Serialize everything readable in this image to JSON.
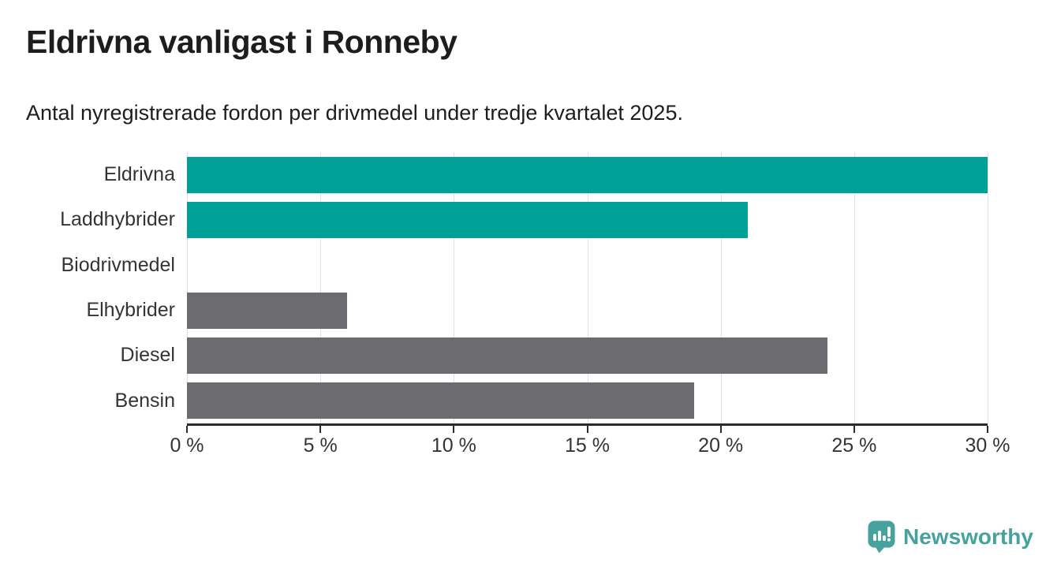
{
  "header": {
    "title": "Eldrivna vanligast i Ronneby",
    "subtitle": "Antal nyregistrerade fordon per drivmedel under tredje kvartalet 2025."
  },
  "chart_data": {
    "type": "bar",
    "orientation": "horizontal",
    "title": "Eldrivna vanligast i Ronneby",
    "subtitle": "Antal nyregistrerade fordon per drivmedel under tredje kvartalet 2025.",
    "categories": [
      "Eldrivna",
      "Laddhybrider",
      "Biodrivmedel",
      "Elhybrider",
      "Diesel",
      "Bensin"
    ],
    "values": [
      30,
      21,
      0,
      6,
      24,
      19
    ],
    "unit": "%",
    "xlim": [
      0,
      30
    ],
    "x_ticks": [
      0,
      5,
      10,
      15,
      20,
      25,
      30
    ],
    "x_tick_labels": [
      "0 %",
      "5 %",
      "10 %",
      "15 %",
      "20 %",
      "25 %",
      "30 %"
    ],
    "bar_colors": [
      "#00a096",
      "#00a096",
      "#6b6b70",
      "#6b6b70",
      "#6b6b70",
      "#6b6b70"
    ],
    "grid": true,
    "legend": false
  },
  "colors": {
    "accent_teal": "#00a096",
    "bar_gray": "#6b6b70",
    "gridline": "#e2e2e2",
    "axis": "#2b2b2b",
    "text_dark": "#1d1d1b",
    "text_label": "#343434",
    "logo_teal": "#46a29d"
  },
  "branding": {
    "logo_text": "Newsworthy",
    "logo_icon": "newsworthy-speech-bubble-barchart-icon"
  }
}
